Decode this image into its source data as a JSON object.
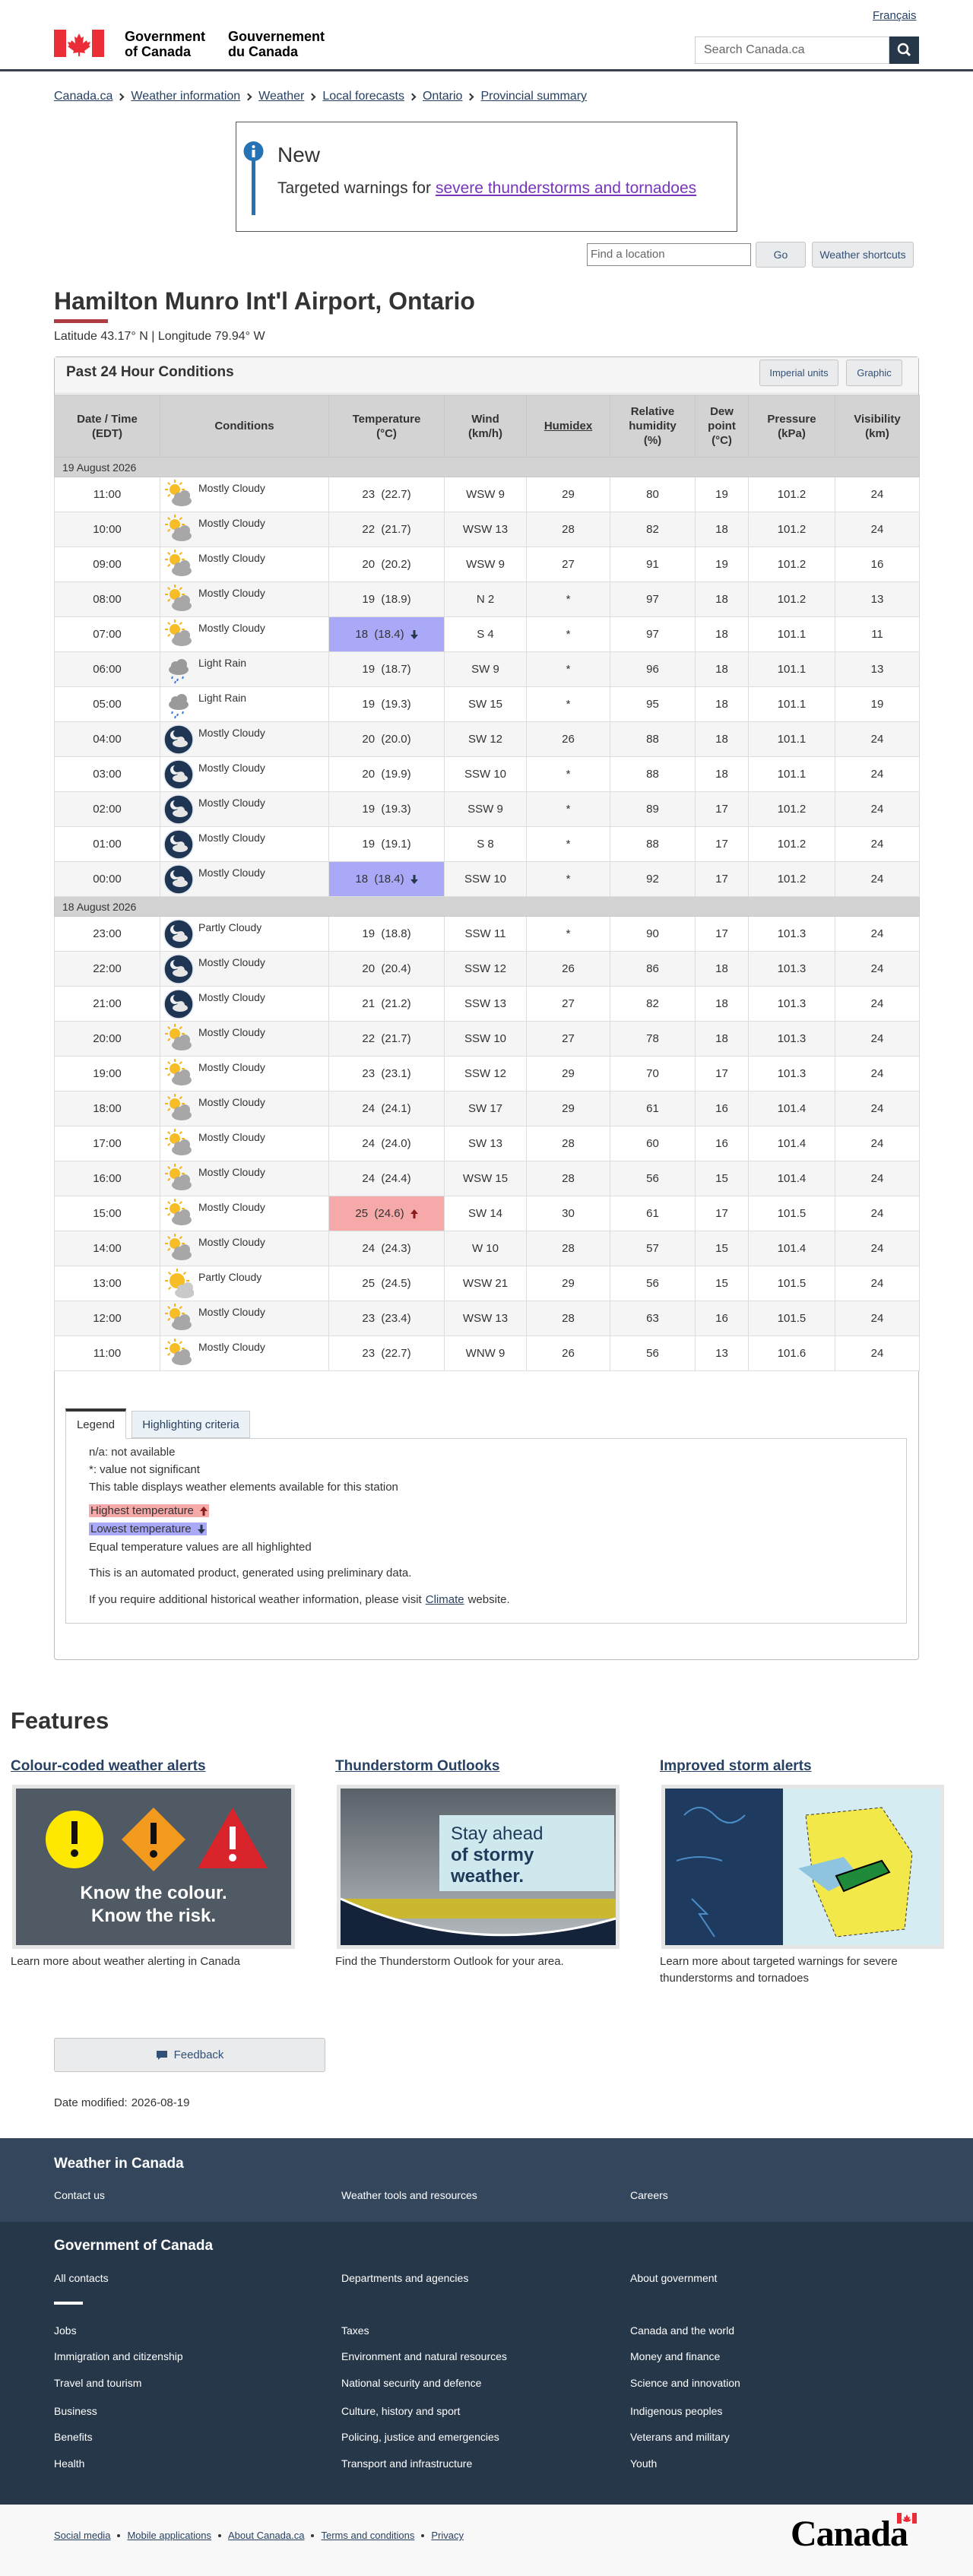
{
  "header": {
    "language_link": "Français",
    "gov_en": [
      "Government",
      "of Canada"
    ],
    "gov_fr": [
      "Gouvernement",
      "du Canada"
    ],
    "search_placeholder": "Search Canada.ca"
  },
  "breadcrumb": [
    "Canada.ca",
    "Weather information",
    "Weather",
    "Local forecasts",
    "Ontario",
    "Provincial summary"
  ],
  "notice": {
    "heading": "New",
    "text": "Targeted warnings for",
    "link": "severe thunderstorms and tornadoes"
  },
  "location_search": {
    "placeholder": "Find a location",
    "button": "Go",
    "shortcuts": "Weather shortcuts"
  },
  "station": {
    "title": "Hamilton Munro Int'l Airport, Ontario",
    "coordinates": "Latitude 43.17° N | Longitude 79.94° W"
  },
  "table": {
    "title": "Past 24 Hour Conditions",
    "buttons": [
      "Imperial units",
      "Graphic"
    ],
    "headers": [
      "Date / Time\n(EDT)",
      "Conditions",
      "Temperature\n(°C)",
      "Wind\n(km/h)",
      "Humidex",
      "Relative\nhumidity\n(%)",
      "Dew\npoint\n(°C)",
      "Pressure\n(kPa)",
      "Visibility\n(km)"
    ],
    "groups": [
      {
        "date": "19 August 2026",
        "rows": [
          {
            "time": "11:00",
            "condition": "Mostly Cloudy",
            "icon": "day",
            "temperature": "23  (22.7)",
            "wind": "WSW 9",
            "humidex": "29",
            "humidity": "80",
            "dew_point": "19",
            "pressure": "101.2",
            "visibility": "24"
          },
          {
            "time": "10:00",
            "condition": "Mostly Cloudy",
            "icon": "day",
            "temperature": "22  (21.7)",
            "wind": "WSW 13",
            "humidex": "28",
            "humidity": "82",
            "dew_point": "18",
            "pressure": "101.2",
            "visibility": "24"
          },
          {
            "time": "09:00",
            "condition": "Mostly Cloudy",
            "icon": "day",
            "temperature": "20  (20.2)",
            "wind": "WSW 9",
            "humidex": "27",
            "humidity": "91",
            "dew_point": "19",
            "pressure": "101.2",
            "visibility": "16"
          },
          {
            "time": "08:00",
            "condition": "Mostly Cloudy",
            "icon": "day",
            "temperature": "19  (18.9)",
            "wind": "N 2",
            "humidex": "*",
            "humidity": "97",
            "dew_point": "18",
            "pressure": "101.2",
            "visibility": "13"
          },
          {
            "time": "07:00",
            "condition": "Mostly Cloudy",
            "icon": "day",
            "temperature": "18  (18.4)",
            "wind": "S 4",
            "humidex": "*",
            "humidity": "97",
            "dew_point": "18",
            "pressure": "101.1",
            "visibility": "11",
            "highlight": "low"
          },
          {
            "time": "06:00",
            "condition": "Light Rain",
            "icon": "rain",
            "temperature": "19  (18.7)",
            "wind": "SW 9",
            "humidex": "*",
            "humidity": "96",
            "dew_point": "18",
            "pressure": "101.1",
            "visibility": "13"
          },
          {
            "time": "05:00",
            "condition": "Light Rain",
            "icon": "rain",
            "temperature": "19  (19.3)",
            "wind": "SW 15",
            "humidex": "*",
            "humidity": "95",
            "dew_point": "18",
            "pressure": "101.1",
            "visibility": "19"
          },
          {
            "time": "04:00",
            "condition": "Mostly Cloudy",
            "icon": "night",
            "temperature": "20  (20.0)",
            "wind": "SW 12",
            "humidex": "26",
            "humidity": "88",
            "dew_point": "18",
            "pressure": "101.1",
            "visibility": "24"
          },
          {
            "time": "03:00",
            "condition": "Mostly Cloudy",
            "icon": "night",
            "temperature": "20  (19.9)",
            "wind": "SSW 10",
            "humidex": "*",
            "humidity": "88",
            "dew_point": "18",
            "pressure": "101.1",
            "visibility": "24"
          },
          {
            "time": "02:00",
            "condition": "Mostly Cloudy",
            "icon": "night",
            "temperature": "19  (19.3)",
            "wind": "SSW 9",
            "humidex": "*",
            "humidity": "89",
            "dew_point": "17",
            "pressure": "101.2",
            "visibility": "24"
          },
          {
            "time": "01:00",
            "condition": "Mostly Cloudy",
            "icon": "night",
            "temperature": "19  (19.1)",
            "wind": "S 8",
            "humidex": "*",
            "humidity": "88",
            "dew_point": "17",
            "pressure": "101.2",
            "visibility": "24"
          },
          {
            "time": "00:00",
            "condition": "Mostly Cloudy",
            "icon": "night",
            "temperature": "18  (18.4)",
            "wind": "SSW 10",
            "humidex": "*",
            "humidity": "92",
            "dew_point": "17",
            "pressure": "101.2",
            "visibility": "24",
            "highlight": "low"
          }
        ]
      },
      {
        "date": "18 August 2026",
        "rows": [
          {
            "time": "23:00",
            "condition": "Partly Cloudy",
            "icon": "night",
            "temperature": "19  (18.8)",
            "wind": "SSW 11",
            "humidex": "*",
            "humidity": "90",
            "dew_point": "17",
            "pressure": "101.3",
            "visibility": "24"
          },
          {
            "time": "22:00",
            "condition": "Mostly Cloudy",
            "icon": "night",
            "temperature": "20  (20.4)",
            "wind": "SSW 12",
            "humidex": "26",
            "humidity": "86",
            "dew_point": "18",
            "pressure": "101.3",
            "visibility": "24"
          },
          {
            "time": "21:00",
            "condition": "Mostly Cloudy",
            "icon": "night",
            "temperature": "21  (21.2)",
            "wind": "SSW 13",
            "humidex": "27",
            "humidity": "82",
            "dew_point": "18",
            "pressure": "101.3",
            "visibility": "24"
          },
          {
            "time": "20:00",
            "condition": "Mostly Cloudy",
            "icon": "day",
            "temperature": "22  (21.7)",
            "wind": "SSW 10",
            "humidex": "27",
            "humidity": "78",
            "dew_point": "18",
            "pressure": "101.3",
            "visibility": "24"
          },
          {
            "time": "19:00",
            "condition": "Mostly Cloudy",
            "icon": "day",
            "temperature": "23  (23.1)",
            "wind": "SSW 12",
            "humidex": "29",
            "humidity": "70",
            "dew_point": "17",
            "pressure": "101.3",
            "visibility": "24"
          },
          {
            "time": "18:00",
            "condition": "Mostly Cloudy",
            "icon": "day",
            "temperature": "24  (24.1)",
            "wind": "SW 17",
            "humidex": "29",
            "humidity": "61",
            "dew_point": "16",
            "pressure": "101.4",
            "visibility": "24"
          },
          {
            "time": "17:00",
            "condition": "Mostly Cloudy",
            "icon": "day",
            "temperature": "24  (24.0)",
            "wind": "SW 13",
            "humidex": "28",
            "humidity": "60",
            "dew_point": "16",
            "pressure": "101.4",
            "visibility": "24"
          },
          {
            "time": "16:00",
            "condition": "Mostly Cloudy",
            "icon": "day",
            "temperature": "24  (24.4)",
            "wind": "WSW 15",
            "humidex": "28",
            "humidity": "56",
            "dew_point": "15",
            "pressure": "101.4",
            "visibility": "24"
          },
          {
            "time": "15:00",
            "condition": "Mostly Cloudy",
            "icon": "day",
            "temperature": "25  (24.6)",
            "wind": "SW 14",
            "humidex": "30",
            "humidity": "61",
            "dew_point": "17",
            "pressure": "101.5",
            "visibility": "24",
            "highlight": "high"
          },
          {
            "time": "14:00",
            "condition": "Mostly Cloudy",
            "icon": "day",
            "temperature": "24  (24.3)",
            "wind": "W 10",
            "humidex": "28",
            "humidity": "57",
            "dew_point": "15",
            "pressure": "101.4",
            "visibility": "24"
          },
          {
            "time": "13:00",
            "condition": "Partly Cloudy",
            "icon": "sun",
            "temperature": "25  (24.5)",
            "wind": "WSW 21",
            "humidex": "29",
            "humidity": "56",
            "dew_point": "15",
            "pressure": "101.5",
            "visibility": "24"
          },
          {
            "time": "12:00",
            "condition": "Mostly Cloudy",
            "icon": "day",
            "temperature": "23  (23.4)",
            "wind": "WSW 13",
            "humidex": "28",
            "humidity": "63",
            "dew_point": "16",
            "pressure": "101.5",
            "visibility": "24"
          },
          {
            "time": "11:00",
            "condition": "Mostly Cloudy",
            "icon": "day",
            "temperature": "23  (22.7)",
            "wind": "WNW 9",
            "humidex": "26",
            "humidity": "56",
            "dew_point": "13",
            "pressure": "101.6",
            "visibility": "24"
          }
        ]
      }
    ]
  },
  "legend": {
    "tabs": [
      "Legend",
      "Highlighting criteria"
    ],
    "notes": [
      "n/a: not available",
      "*: value not significant",
      "This table displays weather elements available for this station"
    ],
    "highest": "Highest temperature",
    "lowest": "Lowest temperature",
    "equal": "Equal temperature values are all highlighted",
    "automated": "This is an automated product, generated using preliminary data.",
    "climate": {
      "before": "If you require additional historical weather information, please visit",
      "link": "Climate",
      "after": "website."
    }
  },
  "features": {
    "heading": "Features",
    "items": [
      {
        "title": "Colour-coded weather alerts",
        "caption": "Learn more about weather alerting in Canada",
        "image_text": [
          "Know the colour.",
          "Know the risk."
        ]
      },
      {
        "title": "Thunderstorm Outlooks",
        "caption": "Find the Thunderstorm Outlook for your area.",
        "image_text": [
          "Stay ahead",
          "of stormy",
          "weather."
        ]
      },
      {
        "title": "Improved storm alerts",
        "caption": "Learn more about targeted warnings for severe thunderstorms and tornadoes"
      }
    ]
  },
  "feedback": "Feedback",
  "date_modified": {
    "label": "Date modified:",
    "value": "2026-08-19"
  },
  "footer": {
    "weather": {
      "title": "Weather in Canada",
      "links": [
        "Contact us",
        "Weather tools and resources",
        "Careers"
      ]
    },
    "government": {
      "title": "Government of Canada",
      "top": [
        "All contacts",
        "Departments and agencies",
        "About government"
      ],
      "links": [
        "Jobs",
        "Taxes",
        "Canada and the world",
        "Immigration and citizenship",
        "Environment and natural resources",
        "Money and finance",
        "Travel and tourism",
        "National security and defence",
        "Science and innovation",
        "Business",
        "Culture, history and sport",
        "Indigenous peoples",
        "Benefits",
        "Policing, justice and emergencies",
        "Veterans and military",
        "Health",
        "Transport and infrastructure",
        "Youth"
      ]
    },
    "bottom": [
      "Social media",
      "Mobile applications",
      "About Canada.ca",
      "Terms and conditions",
      "Privacy"
    ],
    "wordmark": "Canada"
  }
}
